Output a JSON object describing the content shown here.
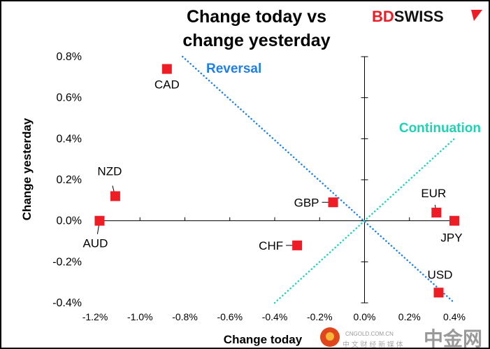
{
  "logo": {
    "text_red": "BD",
    "text_black": "SWISS"
  },
  "watermark": {
    "main": "中金网",
    "sub": "CNGOLD.COM.CN",
    "tagline": "中 文 财 经 新 媒 体"
  },
  "chart_data": {
    "type": "scatter",
    "title_lines": [
      "Change today vs",
      "change yesterday"
    ],
    "xlabel": "Change today",
    "ylabel": "Change yesterday",
    "xlim": [
      -1.2,
      0.4
    ],
    "ylim": [
      -0.4,
      0.8
    ],
    "x_ticks": [
      "-1.2%",
      "-1.0%",
      "-0.8%",
      "-0.6%",
      "-0.4%",
      "-0.2%",
      "0.0%",
      "0.2%",
      "0.4%"
    ],
    "x_tick_values": [
      -1.2,
      -1.0,
      -0.8,
      -0.6,
      -0.4,
      -0.2,
      0.0,
      0.2,
      0.4
    ],
    "y_ticks": [
      "0.8%",
      "0.6%",
      "0.4%",
      "0.2%",
      "0.0%",
      "-0.2%",
      "-0.4%"
    ],
    "y_tick_values": [
      0.8,
      0.6,
      0.4,
      0.2,
      0.0,
      -0.2,
      -0.4
    ],
    "grid": false,
    "points": [
      {
        "label": "CAD",
        "x": -0.88,
        "y": 0.74
      },
      {
        "label": "NZD",
        "x": -1.11,
        "y": 0.12
      },
      {
        "label": "AUD",
        "x": -1.18,
        "y": 0.0
      },
      {
        "label": "GBP",
        "x": -0.14,
        "y": 0.09
      },
      {
        "label": "CHF",
        "x": -0.3,
        "y": -0.12
      },
      {
        "label": "EUR",
        "x": 0.32,
        "y": 0.04
      },
      {
        "label": "JPY",
        "x": 0.4,
        "y": 0.0
      },
      {
        "label": "USD",
        "x": 0.33,
        "y": -0.35
      }
    ],
    "lines": [
      {
        "name": "Reversal",
        "from": [
          -0.81,
          0.8
        ],
        "to": [
          0.4,
          -0.4
        ],
        "color": "#1f7fe6"
      },
      {
        "name": "Continuation",
        "from": [
          -0.4,
          -0.4
        ],
        "to": [
          0.4,
          0.4
        ],
        "color": "#1fd1b5"
      }
    ],
    "marker_color": "#ee1c25"
  }
}
